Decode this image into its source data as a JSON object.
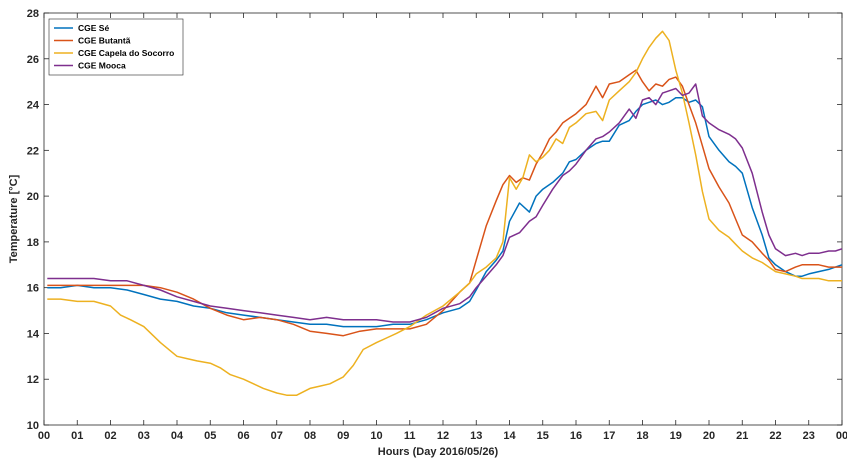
{
  "chart_data": {
    "type": "line",
    "title": "",
    "xlabel": "Hours (Day 2016/05/26)",
    "ylabel": "Temperature [°C]",
    "xlim": [
      0,
      24
    ],
    "ylim": [
      10,
      28
    ],
    "x_ticks": [
      0,
      1,
      2,
      3,
      4,
      5,
      6,
      7,
      8,
      9,
      10,
      11,
      12,
      13,
      14,
      15,
      16,
      17,
      18,
      19,
      20,
      21,
      22,
      23,
      24
    ],
    "x_tick_labels": [
      "00",
      "01",
      "02",
      "03",
      "04",
      "05",
      "06",
      "07",
      "08",
      "09",
      "10",
      "11",
      "12",
      "13",
      "14",
      "15",
      "16",
      "17",
      "18",
      "19",
      "20",
      "21",
      "22",
      "23",
      "00"
    ],
    "y_ticks": [
      10,
      12,
      14,
      16,
      18,
      20,
      22,
      24,
      26,
      28
    ],
    "y_tick_labels": [
      "10",
      "12",
      "14",
      "16",
      "18",
      "20",
      "22",
      "24",
      "26",
      "28"
    ],
    "grid": false,
    "legend_position": "top-left",
    "series": [
      {
        "name": "CGE Sé",
        "color": "#0072BD",
        "x": [
          0.1,
          0.5,
          1,
          1.5,
          2,
          2.5,
          3,
          3.5,
          4,
          4.5,
          5,
          5.5,
          6,
          6.5,
          7,
          7.5,
          8,
          8.5,
          9,
          9.5,
          10,
          10.5,
          11,
          11.5,
          12,
          12.5,
          12.8,
          13,
          13.3,
          13.6,
          13.8,
          14,
          14.3,
          14.6,
          14.8,
          15,
          15.3,
          15.6,
          15.8,
          16,
          16.3,
          16.6,
          16.8,
          17,
          17.3,
          17.6,
          17.8,
          18,
          18.2,
          18.4,
          18.6,
          18.8,
          19,
          19.2,
          19.4,
          19.6,
          19.8,
          20,
          20.3,
          20.6,
          20.8,
          21,
          21.3,
          21.6,
          21.8,
          22,
          22.3,
          22.6,
          22.8,
          23,
          23.3,
          23.6,
          23.8,
          24
        ],
        "y": [
          16.0,
          16.0,
          16.1,
          16.0,
          16.0,
          15.9,
          15.7,
          15.5,
          15.4,
          15.2,
          15.1,
          14.9,
          14.8,
          14.7,
          14.6,
          14.5,
          14.4,
          14.4,
          14.3,
          14.3,
          14.3,
          14.4,
          14.4,
          14.6,
          14.9,
          15.1,
          15.4,
          15.9,
          16.7,
          17.2,
          17.6,
          18.9,
          19.7,
          19.3,
          20.0,
          20.3,
          20.6,
          21.0,
          21.5,
          21.6,
          22.0,
          22.3,
          22.4,
          22.4,
          23.1,
          23.3,
          23.7,
          24.0,
          24.1,
          24.2,
          24.0,
          24.1,
          24.3,
          24.3,
          24.1,
          24.2,
          23.9,
          22.6,
          22.0,
          21.5,
          21.3,
          21.0,
          19.5,
          18.3,
          17.3,
          17.0,
          16.7,
          16.5,
          16.5,
          16.6,
          16.7,
          16.8,
          16.9,
          17.0
        ]
      },
      {
        "name": "CGE Butantã",
        "color": "#D95319",
        "x": [
          0.1,
          0.5,
          1,
          1.5,
          2,
          2.5,
          3,
          3.5,
          4,
          4.5,
          5,
          5.5,
          6,
          6.5,
          7,
          7.5,
          8,
          8.5,
          9,
          9.5,
          10,
          10.5,
          11,
          11.5,
          12,
          12.5,
          12.8,
          13,
          13.3,
          13.6,
          13.8,
          14,
          14.2,
          14.4,
          14.6,
          14.8,
          15,
          15.2,
          15.4,
          15.6,
          15.8,
          16,
          16.3,
          16.6,
          16.8,
          17,
          17.3,
          17.6,
          17.8,
          18,
          18.2,
          18.4,
          18.6,
          18.8,
          19,
          19.2,
          19.4,
          19.6,
          19.8,
          20,
          20.3,
          20.6,
          20.8,
          21,
          21.3,
          21.6,
          21.8,
          22,
          22.3,
          22.6,
          22.8,
          23,
          23.3,
          23.6,
          23.8,
          24
        ],
        "y": [
          16.1,
          16.1,
          16.1,
          16.1,
          16.1,
          16.1,
          16.1,
          16.0,
          15.8,
          15.5,
          15.1,
          14.8,
          14.6,
          14.7,
          14.6,
          14.4,
          14.1,
          14.0,
          13.9,
          14.1,
          14.2,
          14.2,
          14.2,
          14.4,
          15.0,
          15.8,
          16.2,
          17.2,
          18.7,
          19.8,
          20.5,
          20.9,
          20.6,
          20.8,
          20.7,
          21.4,
          21.9,
          22.5,
          22.8,
          23.2,
          23.4,
          23.6,
          24.0,
          24.8,
          24.3,
          24.9,
          25.0,
          25.3,
          25.5,
          25.0,
          24.6,
          24.9,
          24.8,
          25.1,
          25.2,
          24.8,
          24.0,
          23.2,
          22.2,
          21.2,
          20.4,
          19.7,
          19.0,
          18.3,
          18.0,
          17.5,
          17.2,
          16.8,
          16.7,
          16.9,
          17.0,
          17.0,
          17.0,
          16.9,
          16.9,
          16.9
        ]
      },
      {
        "name": "CGE Capela do Socorro",
        "color": "#EDB120",
        "x": [
          0.1,
          0.5,
          1,
          1.5,
          2,
          2.3,
          2.6,
          3,
          3.5,
          4,
          4.3,
          4.6,
          5,
          5.3,
          5.6,
          6,
          6.3,
          6.6,
          7,
          7.3,
          7.6,
          8,
          8.3,
          8.6,
          9,
          9.3,
          9.6,
          10,
          10.3,
          10.6,
          11,
          11.5,
          12,
          12.5,
          12.8,
          13,
          13.3,
          13.6,
          13.8,
          14,
          14.2,
          14.4,
          14.6,
          14.8,
          15,
          15.2,
          15.4,
          15.6,
          15.8,
          16,
          16.3,
          16.6,
          16.8,
          17,
          17.3,
          17.6,
          17.8,
          18,
          18.2,
          18.4,
          18.6,
          18.8,
          19,
          19.2,
          19.4,
          19.6,
          19.8,
          20,
          20.3,
          20.6,
          20.8,
          21,
          21.3,
          21.6,
          21.8,
          22,
          22.3,
          22.6,
          22.8,
          23,
          23.3,
          23.6,
          23.8,
          24
        ],
        "y": [
          15.5,
          15.5,
          15.4,
          15.4,
          15.2,
          14.8,
          14.6,
          14.3,
          13.6,
          13.0,
          12.9,
          12.8,
          12.7,
          12.5,
          12.2,
          12.0,
          11.8,
          11.6,
          11.4,
          11.3,
          11.3,
          11.6,
          11.7,
          11.8,
          12.1,
          12.6,
          13.3,
          13.6,
          13.8,
          14.0,
          14.3,
          14.8,
          15.2,
          15.8,
          16.2,
          16.6,
          16.9,
          17.3,
          18.0,
          20.8,
          20.3,
          20.8,
          21.8,
          21.5,
          21.7,
          22.0,
          22.5,
          22.3,
          23.0,
          23.2,
          23.6,
          23.7,
          23.3,
          24.2,
          24.6,
          25.0,
          25.4,
          26.0,
          26.5,
          26.9,
          27.2,
          26.8,
          25.5,
          24.5,
          23.2,
          21.8,
          20.2,
          19.0,
          18.5,
          18.2,
          17.9,
          17.6,
          17.3,
          17.1,
          16.9,
          16.7,
          16.6,
          16.5,
          16.4,
          16.4,
          16.4,
          16.3,
          16.3,
          16.3
        ]
      },
      {
        "name": "CGE Mooca",
        "color": "#7E2F8E",
        "x": [
          0.1,
          0.5,
          1,
          1.5,
          2,
          2.5,
          3,
          3.5,
          4,
          4.5,
          5,
          5.5,
          6,
          6.5,
          7,
          7.5,
          8,
          8.5,
          9,
          9.5,
          10,
          10.5,
          11,
          11.5,
          12,
          12.5,
          12.8,
          13,
          13.3,
          13.6,
          13.8,
          14,
          14.3,
          14.6,
          14.8,
          15,
          15.3,
          15.6,
          15.8,
          16,
          16.3,
          16.6,
          16.8,
          17,
          17.3,
          17.6,
          17.8,
          18,
          18.2,
          18.4,
          18.6,
          18.8,
          19,
          19.2,
          19.4,
          19.6,
          19.8,
          20,
          20.3,
          20.6,
          20.8,
          21,
          21.3,
          21.6,
          21.8,
          22,
          22.3,
          22.6,
          22.8,
          23,
          23.3,
          23.6,
          23.8,
          24
        ],
        "y": [
          16.4,
          16.4,
          16.4,
          16.4,
          16.3,
          16.3,
          16.1,
          15.9,
          15.6,
          15.4,
          15.2,
          15.1,
          15.0,
          14.9,
          14.8,
          14.7,
          14.6,
          14.7,
          14.6,
          14.6,
          14.6,
          14.5,
          14.5,
          14.7,
          15.1,
          15.3,
          15.6,
          16.0,
          16.5,
          17.0,
          17.4,
          18.2,
          18.4,
          18.9,
          19.1,
          19.6,
          20.3,
          20.9,
          21.1,
          21.4,
          22.0,
          22.5,
          22.6,
          22.8,
          23.2,
          23.8,
          23.4,
          24.2,
          24.3,
          24.0,
          24.5,
          24.6,
          24.7,
          24.4,
          24.5,
          24.9,
          23.5,
          23.2,
          22.9,
          22.7,
          22.5,
          22.1,
          21.0,
          19.3,
          18.3,
          17.7,
          17.4,
          17.5,
          17.4,
          17.5,
          17.5,
          17.6,
          17.6,
          17.7
        ]
      }
    ]
  }
}
